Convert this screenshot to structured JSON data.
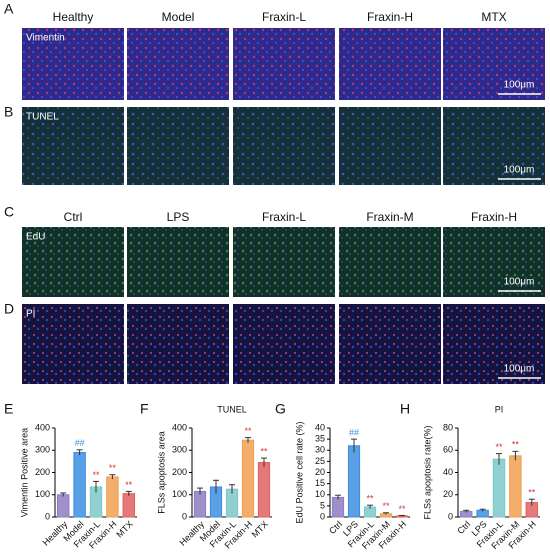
{
  "panel_labels": [
    "A",
    "B",
    "C",
    "D",
    "E",
    "F",
    "G",
    "H"
  ],
  "section1": {
    "columns": [
      "Healthy",
      "Model",
      "Fraxin-L",
      "Fraxin-H",
      "MTX"
    ],
    "rows": [
      "Vimentin",
      "TUNEL"
    ],
    "scale_bar": "100μm"
  },
  "section2": {
    "columns": [
      "Ctrl",
      "LPS",
      "Fraxin-L",
      "Fraxin-M",
      "Fraxin-H"
    ],
    "rows": [
      "EdU",
      "PI"
    ],
    "scale_bar": "100μm"
  },
  "chart_data": [
    {
      "type": "bar",
      "ylabel": "Vimentin Positive area",
      "categories": [
        "Healthy",
        "Model",
        "Fraxin-L",
        "Fraxin-H",
        "MTX"
      ],
      "values": [
        100,
        290,
        135,
        180,
        105
      ],
      "errors": [
        8,
        12,
        25,
        10,
        10
      ],
      "annotations": [
        null,
        "##",
        "**",
        "**",
        "**"
      ],
      "colors": [
        "#8e7cc3",
        "#3d8fe0",
        "#7ec8c8",
        "#f0a050",
        "#e06060"
      ],
      "ylim": [
        0,
        400
      ],
      "yticks": [
        0,
        100,
        200,
        300,
        400
      ]
    },
    {
      "type": "bar",
      "title": "TUNEL",
      "ylabel": "FLSs apoptosis area",
      "categories": [
        "Healthy",
        "Model",
        "Fraxin-L",
        "Fraxin-H",
        "MTX"
      ],
      "values": [
        115,
        135,
        125,
        345,
        245
      ],
      "errors": [
        15,
        30,
        20,
        12,
        20
      ],
      "annotations": [
        null,
        null,
        null,
        "**",
        "**"
      ],
      "colors": [
        "#8e7cc3",
        "#3d8fe0",
        "#7ec8c8",
        "#f0a050",
        "#e06060"
      ],
      "ylim": [
        0,
        400
      ],
      "yticks": [
        0,
        100,
        200,
        300,
        400
      ]
    },
    {
      "type": "bar",
      "ylabel": "EdU Positive cell rate (%)",
      "categories": [
        "Ctrl",
        "LPS",
        "Fraxin-L",
        "Fraxin-M",
        "Fraxin-H"
      ],
      "values": [
        8.8,
        32,
        4.5,
        1.5,
        0.5
      ],
      "errors": [
        1,
        3,
        0.8,
        0.4,
        0.2
      ],
      "annotations": [
        null,
        "##",
        "**",
        "**",
        "**"
      ],
      "colors": [
        "#8e7cc3",
        "#3d8fe0",
        "#7ec8c8",
        "#f0a050",
        "#e06060"
      ],
      "ylim": [
        0,
        40
      ],
      "yticks": [
        0,
        5,
        10,
        15,
        20,
        25,
        30,
        35,
        40
      ]
    },
    {
      "type": "bar",
      "title": "PI",
      "ylabel": "FLSs apoptosis rate(%)",
      "categories": [
        "Ctrl",
        "LPS",
        "Fraxin-L",
        "Fraxin-M",
        "Fraxin-H"
      ],
      "values": [
        5,
        6,
        52,
        55,
        13
      ],
      "errors": [
        1,
        1,
        5,
        4,
        3
      ],
      "annotations": [
        null,
        null,
        "**",
        "**",
        "**"
      ],
      "colors": [
        "#8e7cc3",
        "#3d8fe0",
        "#7ec8c8",
        "#f0a050",
        "#e06060"
      ],
      "ylim": [
        0,
        80
      ],
      "yticks": [
        0,
        20,
        40,
        60,
        80
      ]
    }
  ]
}
